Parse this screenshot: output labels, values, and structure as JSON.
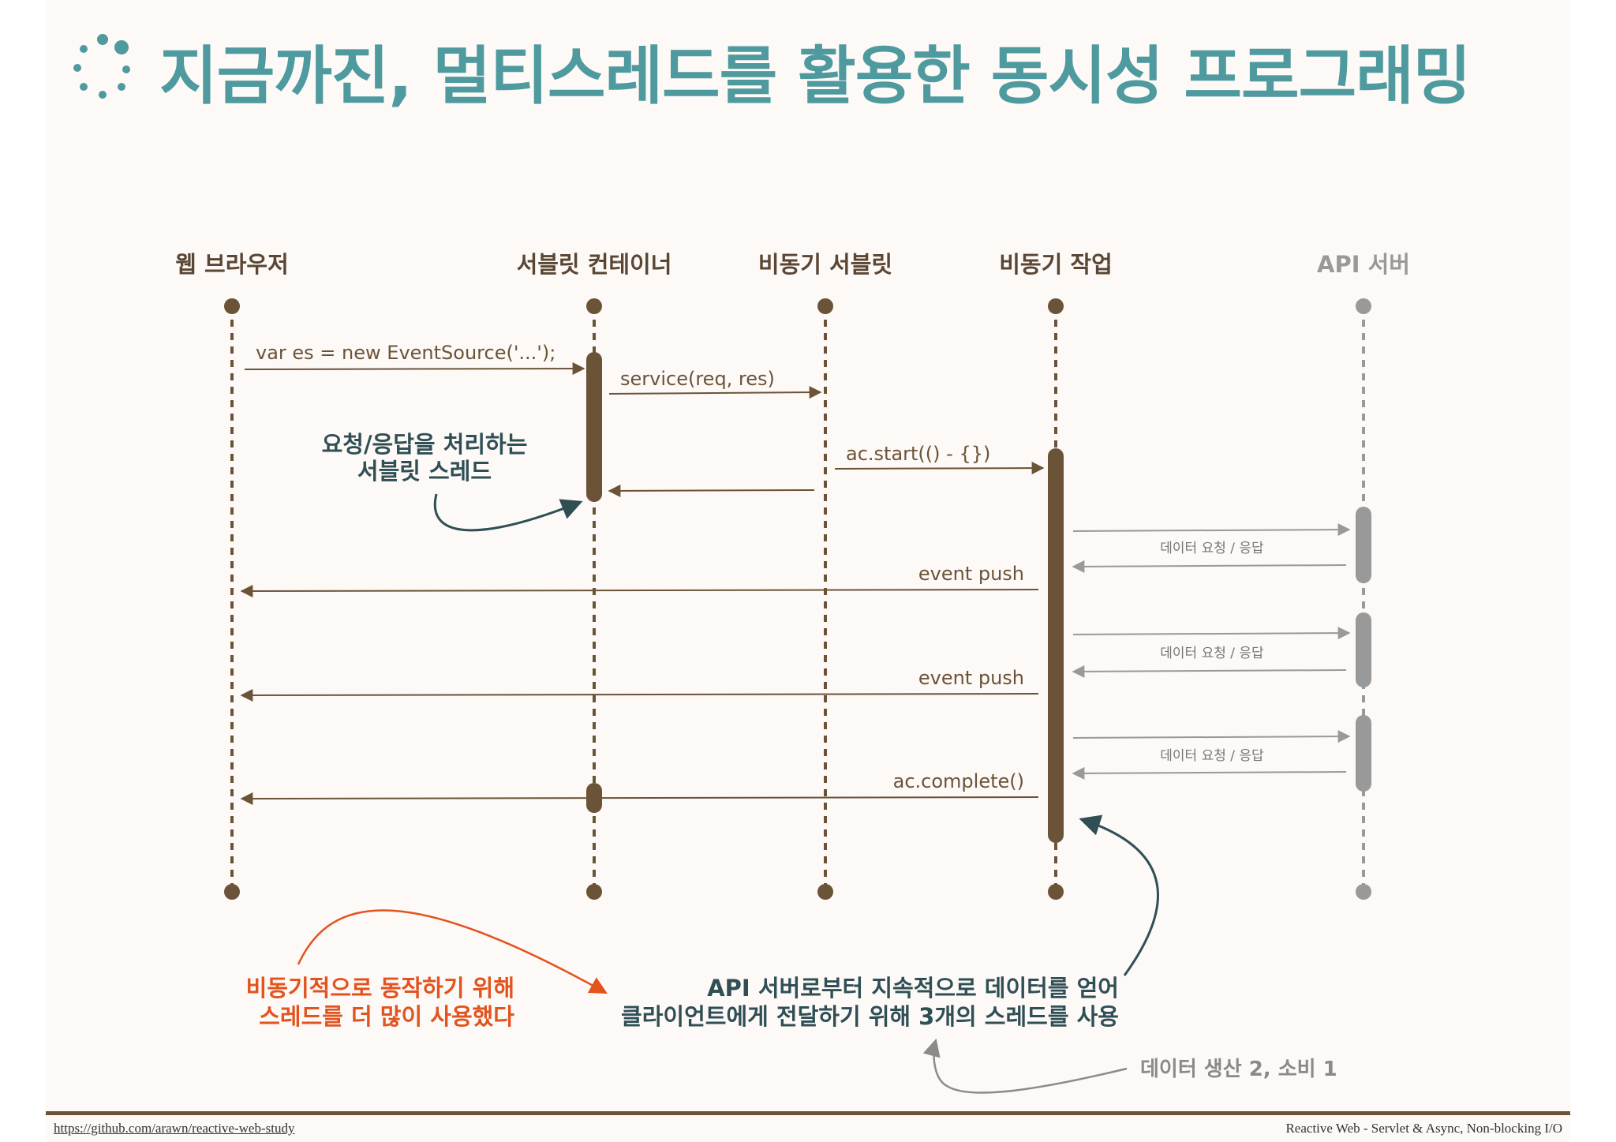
{
  "title": "지금까진, 멀티스레드를 활용한 동시성 프로그래밍",
  "colors": {
    "title": "#4f9a9e",
    "lifeline": "#6b5338",
    "api_lifeline": "#999999",
    "note_teal": "#2f4f55",
    "note_orange": "#e2531e",
    "note_gray": "#8a8a8a"
  },
  "participants": [
    "웹 브라우저",
    "서블릿 컨테이너",
    "비동기 서블릿",
    "비동기 작업",
    "API 서버"
  ],
  "messages": {
    "m1": "var es = new EventSource('...');",
    "m2": "service(req, res)",
    "m3": "ac.start(() - {})",
    "api1": "데이터 요청 / 응답",
    "push1": "event push",
    "api2": "데이터 요청 / 응답",
    "push2": "event push",
    "api3": "데이터 요청 / 응답",
    "complete": "ac.complete()"
  },
  "notes": {
    "servlet_thread": [
      "요청/응답을 처리하는",
      "서블릿 스레드"
    ],
    "orange": [
      "비동기적으로  동작하기 위해",
      "스레드를 더 많이 사용했다"
    ],
    "teal": [
      "API 서버로부터 지속적으로 데이터를 얻어",
      "클라이언트에게 전달하기 위해 3개의 스레드를 사용"
    ],
    "gray": "데이터 생산 2, 소비 1"
  },
  "footer": {
    "link": "https://github.com/arawn/reactive-web-study",
    "note": "Reactive Web - Servlet & Async, Non-blocking I/O"
  }
}
